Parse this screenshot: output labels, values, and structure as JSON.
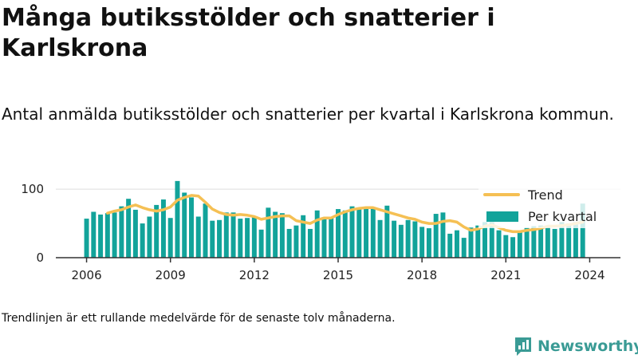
{
  "title": "Många butiksstölder och snatterier i Karlskrona",
  "subtitle": "Antal anmälda butiksstölder och snatterier per kvartal i Karlskrona kommun.",
  "footnote": "Trendlinjen är ett rullande medelvärde för de senaste tolv månaderna.",
  "brand": {
    "name": "Newsworthy",
    "icon": "newsworthy-logo-icon"
  },
  "colors": {
    "bars": "#12a39a",
    "trend": "#f5c054",
    "grid": "#dddddd",
    "axis": "#333333",
    "brand": "#3a9b95"
  },
  "chart_data": {
    "type": "bar",
    "x_start": 2006.0,
    "x_step": 0.25,
    "ylim": [
      0,
      120
    ],
    "xlim": [
      2004.9,
      2025.1
    ],
    "x_ticks": [
      "2006",
      "2009",
      "2012",
      "2015",
      "2018",
      "2021",
      "2024"
    ],
    "y_ticks": [
      "0",
      "100"
    ],
    "legend_position": "top-right",
    "grid": true,
    "series": [
      {
        "name": "Per kvartal",
        "type": "bar",
        "values": [
          57,
          67,
          63,
          65,
          66,
          75,
          86,
          70,
          50,
          60,
          77,
          85,
          58,
          112,
          95,
          88,
          60,
          79,
          54,
          55,
          66,
          66,
          57,
          58,
          60,
          41,
          73,
          67,
          65,
          42,
          47,
          62,
          42,
          69,
          56,
          58,
          71,
          69,
          75,
          72,
          72,
          73,
          55,
          76,
          54,
          48,
          55,
          53,
          45,
          43,
          64,
          66,
          35,
          40,
          29,
          44,
          47,
          52,
          52,
          40,
          33,
          30,
          39,
          44,
          46,
          47,
          47,
          42,
          52,
          50,
          52,
          79
        ]
      },
      {
        "name": "Trend",
        "type": "line",
        "values": [
          null,
          null,
          null,
          65,
          68,
          70,
          74,
          77,
          73,
          70,
          68,
          70,
          74,
          84,
          88,
          91,
          90,
          81,
          71,
          66,
          63,
          62,
          63,
          62,
          60,
          56,
          58,
          60,
          61,
          61,
          54,
          52,
          50,
          55,
          58,
          58,
          63,
          67,
          70,
          72,
          73,
          73,
          70,
          67,
          64,
          61,
          58,
          56,
          52,
          50,
          50,
          53,
          54,
          52,
          45,
          40,
          42,
          46,
          48,
          44,
          40,
          38,
          38,
          40,
          41,
          43,
          46,
          46,
          47,
          48,
          50,
          52
        ]
      }
    ]
  }
}
